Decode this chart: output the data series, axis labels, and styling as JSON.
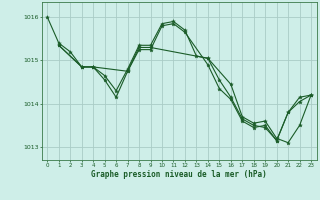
{
  "title": "",
  "xlabel": "Graphe pression niveau de la mer (hPa)",
  "ylabel": "",
  "bg_color": "#ceeee8",
  "grid_color": "#aaccc6",
  "line_color": "#1a5c28",
  "fig_bg": "#ceeee8",
  "xlim": [
    -0.5,
    23.5
  ],
  "ylim": [
    1012.7,
    1016.35
  ],
  "yticks": [
    1013,
    1014,
    1015,
    1016
  ],
  "xticks": [
    0,
    1,
    2,
    3,
    4,
    5,
    6,
    7,
    8,
    9,
    10,
    11,
    12,
    13,
    14,
    15,
    16,
    17,
    18,
    19,
    20,
    21,
    22,
    23
  ],
  "series": [
    {
      "x": [
        0,
        1,
        2,
        3,
        4,
        5,
        6,
        7,
        8,
        9,
        10,
        11,
        12,
        13,
        14,
        15,
        16,
        17,
        18,
        19,
        20,
        21,
        22,
        23
      ],
      "y": [
        1016.0,
        1015.4,
        1015.2,
        1014.85,
        1014.85,
        1014.65,
        1014.3,
        1014.8,
        1015.35,
        1015.35,
        1015.85,
        1015.9,
        1015.7,
        1015.1,
        1015.05,
        1014.55,
        1014.15,
        1013.65,
        1013.5,
        1013.45,
        1013.15,
        1013.8,
        1014.15,
        1014.2
      ]
    },
    {
      "x": [
        1,
        3,
        4,
        7,
        8,
        9,
        14,
        16,
        17,
        18,
        19,
        20,
        21,
        22,
        23
      ],
      "y": [
        1015.35,
        1014.85,
        1014.85,
        1014.75,
        1015.3,
        1015.3,
        1015.05,
        1014.45,
        1013.7,
        1013.55,
        1013.6,
        1013.2,
        1013.1,
        1013.5,
        1014.2
      ]
    },
    {
      "x": [
        1,
        3,
        4,
        5,
        6,
        7,
        8,
        9,
        10,
        11,
        12,
        14,
        15,
        16,
        17,
        18,
        19,
        20,
        21,
        22,
        23
      ],
      "y": [
        1015.35,
        1014.85,
        1014.85,
        1014.55,
        1014.15,
        1014.75,
        1015.25,
        1015.25,
        1015.8,
        1015.85,
        1015.65,
        1014.9,
        1014.35,
        1014.1,
        1013.6,
        1013.45,
        1013.5,
        1013.15,
        1013.8,
        1014.05,
        1014.2
      ]
    }
  ]
}
